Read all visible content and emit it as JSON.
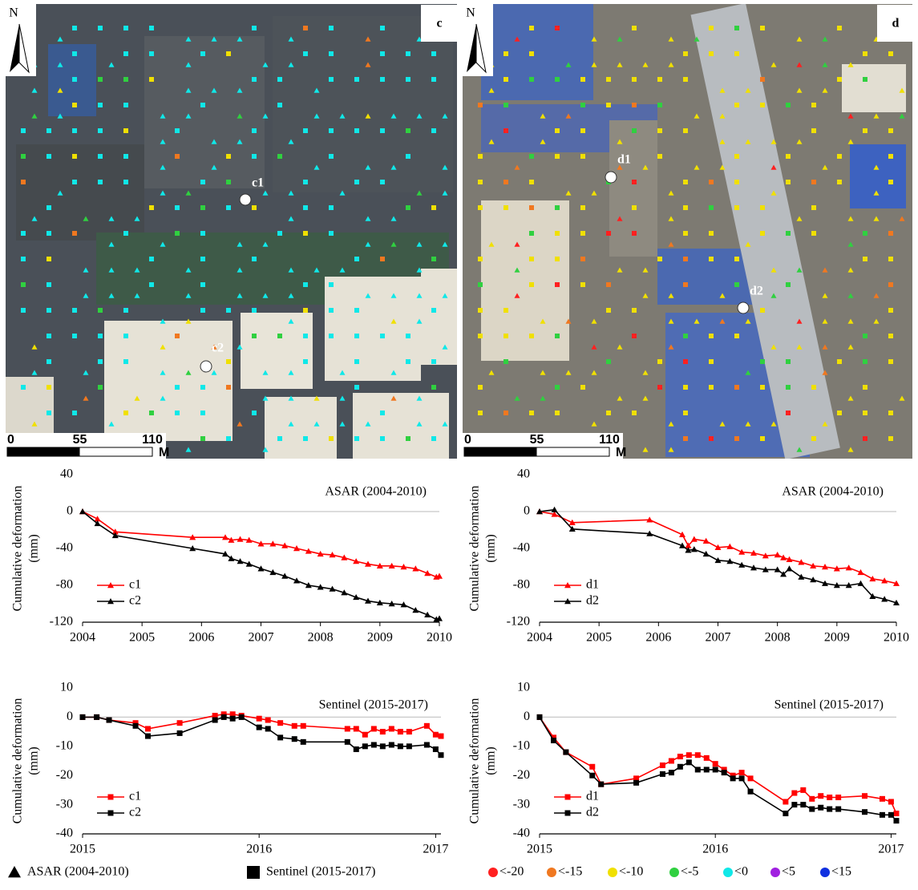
{
  "maps": [
    {
      "panel": "c",
      "north": "N",
      "points": [
        {
          "label": "c1"
        },
        {
          "label": "c2"
        }
      ],
      "scale": {
        "ticks": [
          0,
          55,
          110
        ],
        "unit": "M"
      }
    },
    {
      "panel": "d",
      "north": "N",
      "points": [
        {
          "label": "d1"
        },
        {
          "label": "d2"
        }
      ],
      "scale": {
        "ticks": [
          0,
          55,
          110
        ],
        "unit": "M"
      }
    }
  ],
  "chart_data": [
    {
      "type": "line",
      "title": "ASAR (2004-2010)",
      "y_label": [
        "Cumulative deformation",
        "(mm)"
      ],
      "xlim": [
        2004,
        2010
      ],
      "xticks": [
        2004,
        2005,
        2006,
        2007,
        2008,
        2009,
        2010
      ],
      "ylim": [
        -120,
        40
      ],
      "yticks": [
        -120,
        -80,
        -40,
        0,
        40
      ],
      "x": [
        2004,
        2004.25,
        2004.55,
        2005.85,
        2006.4,
        2006.5,
        2006.65,
        2006.8,
        2007,
        2007.2,
        2007.4,
        2007.6,
        2007.8,
        2008,
        2008.2,
        2008.4,
        2008.6,
        2008.8,
        2009,
        2009.2,
        2009.4,
        2009.6,
        2009.8,
        2009.95,
        2010
      ],
      "series": [
        {
          "name": "c1",
          "color": "#ff0000",
          "marker": "triangle",
          "values": [
            0,
            -8,
            -22,
            -28,
            -28,
            -31,
            -30,
            -31,
            -35,
            -35,
            -37,
            -40,
            -43,
            -46,
            -47,
            -50,
            -54,
            -57,
            -59,
            -59,
            -60,
            -62,
            -67,
            -71,
            -70
          ]
        },
        {
          "name": "c2",
          "color": "#000000",
          "marker": "triangle",
          "values": [
            0,
            -13,
            -26,
            -40,
            -46,
            -51,
            -54,
            -57,
            -62,
            -66,
            -70,
            -75,
            -80,
            -82,
            -84,
            -88,
            -93,
            -97,
            -99,
            -100,
            -101,
            -107,
            -112,
            -117,
            -116
          ]
        }
      ]
    },
    {
      "type": "line",
      "title": "ASAR (2004-2010)",
      "y_label": [
        "Cumulative deformation",
        "(mm)"
      ],
      "xlim": [
        2004,
        2010
      ],
      "xticks": [
        2004,
        2005,
        2006,
        2007,
        2008,
        2009,
        2010
      ],
      "ylim": [
        -120,
        40
      ],
      "yticks": [
        -120,
        -80,
        -40,
        0,
        40
      ],
      "x": [
        2004,
        2004.25,
        2004.55,
        2005.85,
        2006.4,
        2006.5,
        2006.6,
        2006.8,
        2007,
        2007.2,
        2007.4,
        2007.6,
        2007.8,
        2008,
        2008.1,
        2008.2,
        2008.4,
        2008.6,
        2008.8,
        2009,
        2009.2,
        2009.4,
        2009.6,
        2009.8,
        2010
      ],
      "series": [
        {
          "name": "d1",
          "color": "#ff0000",
          "marker": "triangle",
          "values": [
            0,
            -3,
            -12,
            -9,
            -25,
            -37,
            -30,
            -32,
            -39,
            -38,
            -44,
            -45,
            -48,
            -47,
            -50,
            -52,
            -55,
            -59,
            -60,
            -62,
            -61,
            -66,
            -73,
            -75,
            -78
          ]
        },
        {
          "name": "d2",
          "color": "#000000",
          "marker": "triangle",
          "values": [
            0,
            2,
            -19,
            -24,
            -37,
            -42,
            -41,
            -46,
            -53,
            -54,
            -58,
            -61,
            -63,
            -63,
            -68,
            -62,
            -71,
            -74,
            -78,
            -80,
            -80,
            -78,
            -92,
            -95,
            -99
          ]
        }
      ]
    },
    {
      "type": "line",
      "title": "Sentinel (2015-2017)",
      "y_label": [
        "Cumulative deformation",
        "(mm)"
      ],
      "xlim": [
        2015,
        2017.03
      ],
      "xticks": [
        2015,
        2016,
        2017
      ],
      "ylim": [
        -40,
        10
      ],
      "yticks": [
        -40,
        -30,
        -20,
        -10,
        0,
        10
      ],
      "x": [
        2015,
        2015.08,
        2015.15,
        2015.3,
        2015.37,
        2015.55,
        2015.75,
        2015.8,
        2015.85,
        2015.9,
        2016,
        2016.05,
        2016.12,
        2016.2,
        2016.25,
        2016.5,
        2016.55,
        2016.6,
        2016.65,
        2016.7,
        2016.75,
        2016.8,
        2016.85,
        2016.95,
        2017,
        2017.03
      ],
      "series": [
        {
          "name": "c1",
          "color": "#ff0000",
          "marker": "square",
          "values": [
            0,
            0,
            -1,
            -2,
            -4,
            -2,
            0.5,
            1,
            1,
            0.5,
            -0.5,
            -1,
            -2,
            -3,
            -3,
            -4,
            -4,
            -6,
            -4,
            -5,
            -4,
            -5,
            -5,
            -3,
            -6,
            -6.5
          ]
        },
        {
          "name": "c2",
          "color": "#000000",
          "marker": "square",
          "values": [
            0,
            0,
            -1,
            -3,
            -6.5,
            -5.5,
            -1,
            0,
            -0.5,
            0,
            -3.5,
            -4,
            -7,
            -7.5,
            -8.5,
            -8.5,
            -11,
            -10,
            -9.5,
            -10,
            -9.5,
            -10,
            -10,
            -9.5,
            -11,
            -13
          ]
        }
      ]
    },
    {
      "type": "line",
      "title": "Sentinel (2015-2017)",
      "y_label": [
        "Cumulative deformation",
        "(mm)"
      ],
      "xlim": [
        2015,
        2017.03
      ],
      "xticks": [
        2015,
        2016,
        2017
      ],
      "ylim": [
        -40,
        10
      ],
      "yticks": [
        -40,
        -30,
        -20,
        -10,
        0,
        10
      ],
      "x": [
        2015,
        2015.08,
        2015.15,
        2015.3,
        2015.35,
        2015.55,
        2015.7,
        2015.75,
        2015.8,
        2015.85,
        2015.9,
        2015.95,
        2016,
        2016.05,
        2016.1,
        2016.15,
        2016.2,
        2016.4,
        2016.45,
        2016.5,
        2016.55,
        2016.6,
        2016.65,
        2016.7,
        2016.85,
        2016.95,
        2017,
        2017.03
      ],
      "series": [
        {
          "name": "d1",
          "color": "#ff0000",
          "marker": "square",
          "values": [
            0,
            -7,
            -12,
            -17,
            -23,
            -21,
            -16.5,
            -15,
            -13.5,
            -13,
            -13,
            -14,
            -16,
            -18,
            -20,
            -19,
            -21,
            -29,
            -26,
            -25,
            -28,
            -27,
            -27.5,
            -27.5,
            -27,
            -28,
            -29,
            -33
          ]
        },
        {
          "name": "d2",
          "color": "#000000",
          "marker": "square",
          "values": [
            0,
            -8,
            -12,
            -20,
            -23,
            -22.5,
            -19.5,
            -19,
            -17,
            -15.5,
            -18,
            -18,
            -18,
            -19,
            -21,
            -21,
            -25.5,
            -33,
            -30,
            -30,
            -31.5,
            -31,
            -31.5,
            -31.5,
            -32.5,
            -33.5,
            -33.5,
            -35.5
          ]
        }
      ]
    }
  ],
  "legend": {
    "symbols": [
      {
        "shape": "triangle",
        "label": "ASAR (2004-2010)"
      },
      {
        "shape": "square",
        "label": "Sentinel (2015-2017)"
      }
    ],
    "classes": [
      {
        "color": "#ff2020",
        "label": "<-20"
      },
      {
        "color": "#f07820",
        "label": "<-15"
      },
      {
        "color": "#f0e000",
        "label": "<-10"
      },
      {
        "color": "#30d040",
        "label": "<-5"
      },
      {
        "color": "#10e8e8",
        "label": "<0"
      },
      {
        "color": "#a020e0",
        "label": "<5"
      },
      {
        "color": "#1030e0",
        "label": "<15"
      }
    ]
  }
}
